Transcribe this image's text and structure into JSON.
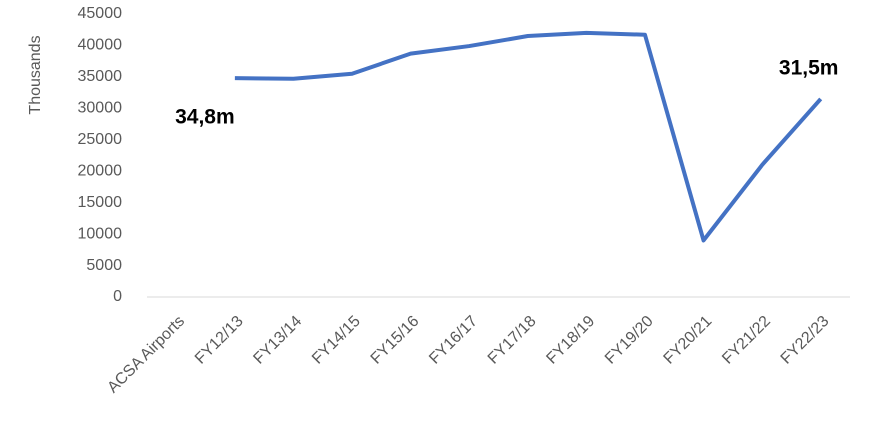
{
  "chart_data": {
    "type": "line",
    "y_label": "Thousands",
    "categories": [
      "ACSA Airports",
      "FY12/13",
      "FY13/14",
      "FY14/15",
      "FY15/16",
      "FY16/17",
      "FY17/18",
      "FY18/19",
      "FY19/20",
      "FY20/21",
      "FY21/22",
      "FY22/23"
    ],
    "values": [
      null,
      34800,
      34700,
      35500,
      38700,
      39900,
      41500,
      42000,
      41700,
      9000,
      21000,
      31500
    ],
    "value_labels": [
      null,
      "34,8m",
      null,
      null,
      null,
      null,
      null,
      null,
      null,
      null,
      null,
      "31,5m"
    ],
    "color": "#4472c4",
    "ylim": [
      0,
      45000
    ],
    "yticks": [
      0,
      5000,
      10000,
      15000,
      20000,
      25000,
      30000,
      35000,
      40000,
      45000
    ],
    "grid": false
  }
}
